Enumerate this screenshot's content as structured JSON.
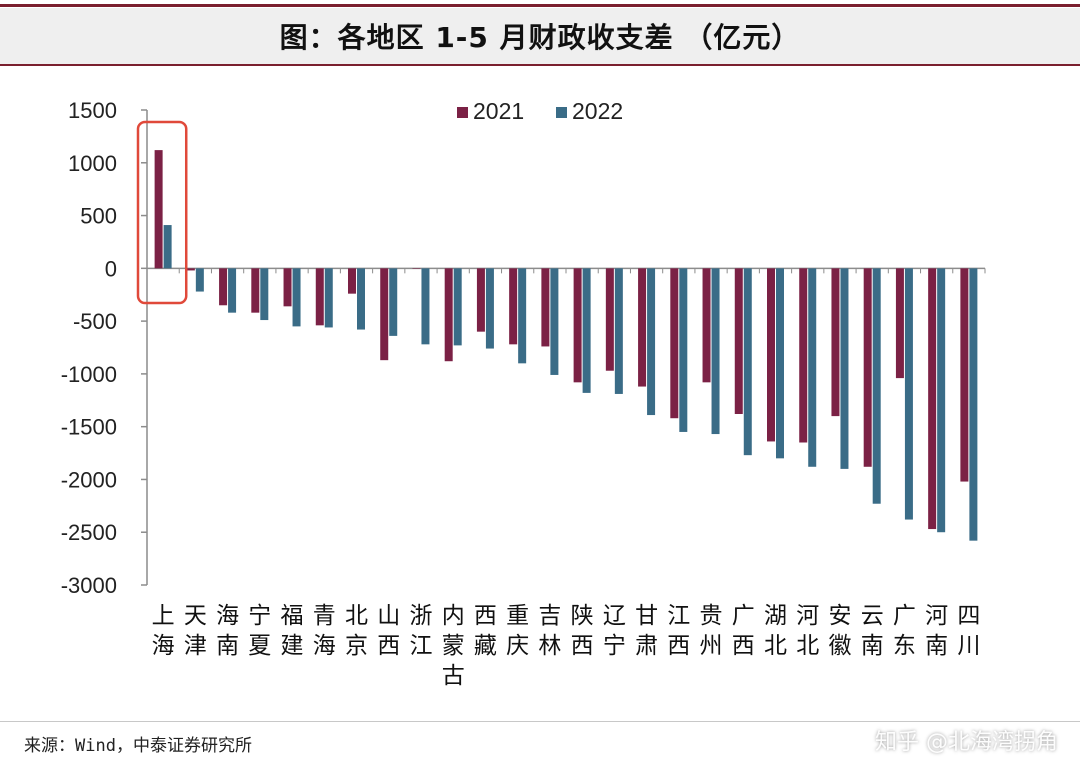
{
  "header": {
    "title": "图：各地区 1-5 月财政收支差 （亿元）"
  },
  "footer": {
    "source": "来源：Wind，中泰证券研究所",
    "watermark": "知乎 @北海湾拐角"
  },
  "colors": {
    "series_2021": "#7b2145",
    "series_2022": "#3a6c87",
    "highlight_box": "#e0493a",
    "rule": "#7a1f2e"
  },
  "chart_data": {
    "type": "bar",
    "title": "",
    "xlabel": "",
    "ylabel": "",
    "ylim": [
      -3000,
      1500
    ],
    "yticks": [
      1500,
      1000,
      500,
      0,
      -500,
      -1000,
      -1500,
      -2000,
      -2500,
      -3000
    ],
    "grid": false,
    "legend_position": "top-center",
    "categories": [
      "上海",
      "天津",
      "海南",
      "宁夏",
      "福建",
      "青海",
      "北京",
      "山西",
      "浙江",
      "内蒙古",
      "西藏",
      "重庆",
      "吉林",
      "陕西",
      "辽宁",
      "甘肃",
      "江西",
      "贵州",
      "广西",
      "湖北",
      "河北",
      "安徽",
      "云南",
      "广东",
      "河南",
      "四川"
    ],
    "series": [
      {
        "name": "2021",
        "values": [
          1120,
          -20,
          -350,
          -420,
          -360,
          -540,
          -240,
          -870,
          0,
          -880,
          -600,
          -720,
          -740,
          -1080,
          -970,
          -1120,
          -1420,
          -1080,
          -1380,
          -1640,
          -1650,
          -1400,
          -1880,
          -1040,
          -2470,
          -2020
        ]
      },
      {
        "name": "2022",
        "values": [
          410,
          -220,
          -420,
          -490,
          -550,
          -560,
          -580,
          -640,
          -720,
          -730,
          -760,
          -900,
          -1010,
          -1180,
          -1190,
          -1390,
          -1550,
          -1570,
          -1770,
          -1800,
          -1880,
          -1900,
          -2230,
          -2380,
          -2500,
          -2580
        ]
      }
    ],
    "highlight_category": "上海"
  }
}
